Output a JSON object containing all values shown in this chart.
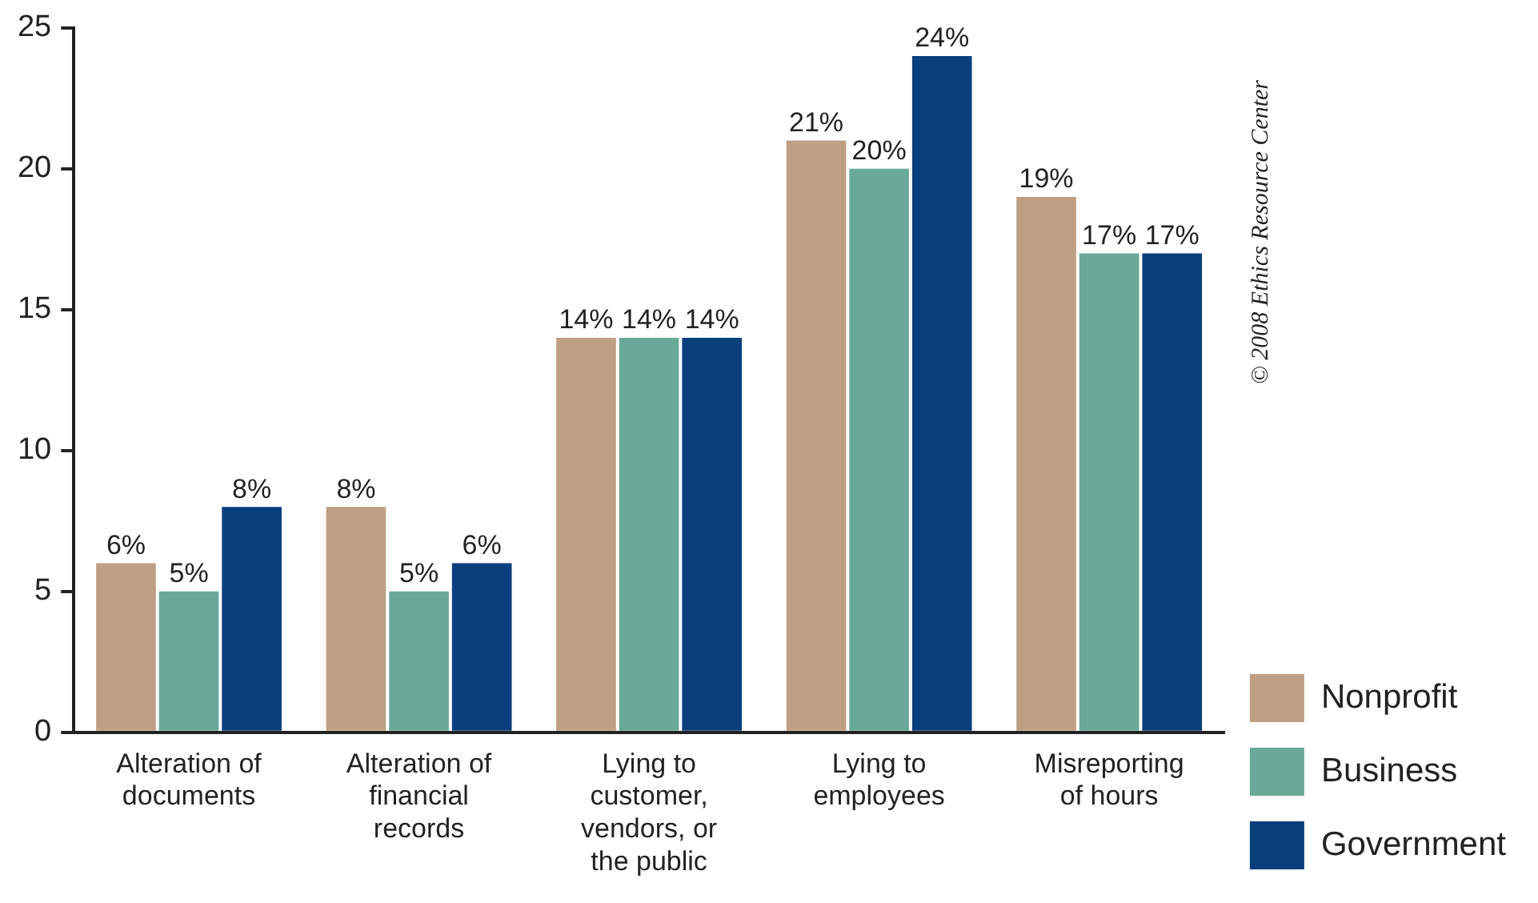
{
  "chart_data": {
    "type": "bar",
    "categories": [
      "Alteration of documents",
      "Alteration of financial records",
      "Lying to customer, vendors, or the public",
      "Lying to employees",
      "Misreporting of hours"
    ],
    "series": [
      {
        "name": "Nonprofit",
        "color": "#bf9f83",
        "values": [
          6,
          8,
          14,
          21,
          19
        ],
        "value_labels": [
          "6%",
          "8%",
          "14%",
          "21%",
          "19%"
        ]
      },
      {
        "name": "Business",
        "color": "#6aa99a",
        "values": [
          5,
          5,
          14,
          20,
          17
        ],
        "value_labels": [
          "5%",
          "5%",
          "14%",
          "20%",
          "17%"
        ]
      },
      {
        "name": "Government",
        "color": "#0a3f7d",
        "values": [
          8,
          6,
          14,
          24,
          17
        ],
        "value_labels": [
          "8%",
          "6%",
          "14%",
          "24%",
          "17%"
        ]
      }
    ],
    "ylim": [
      0,
      25
    ],
    "yticks": [
      0,
      5,
      10,
      15,
      20,
      25
    ],
    "grid": false,
    "legend": "right",
    "annotations": [
      "© 2008 Ethics Resource Center"
    ]
  }
}
